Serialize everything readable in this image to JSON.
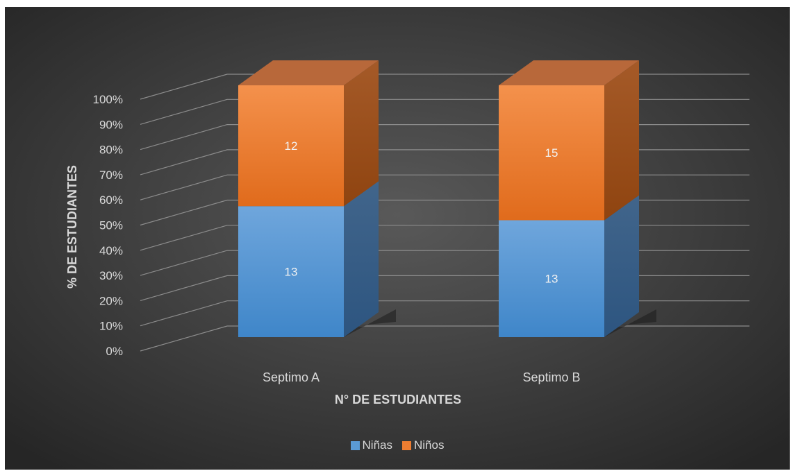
{
  "chart_data": {
    "type": "bar",
    "stacked": "percent",
    "three_d": true,
    "categories": [
      "Septimo A",
      "Septimo B"
    ],
    "series": [
      {
        "name": "Niñas",
        "values": [
          13,
          13
        ],
        "color": "#5b9bd5"
      },
      {
        "name": "Niños",
        "values": [
          12,
          15
        ],
        "color": "#ed7d31"
      }
    ],
    "title": "",
    "xlabel": "N° DE ESTUDIANTES",
    "ylabel": "% DE ESTUDIANTES",
    "yticks": [
      "0%",
      "10%",
      "20%",
      "30%",
      "40%",
      "50%",
      "60%",
      "70%",
      "80%",
      "90%",
      "100%"
    ],
    "ylim": [
      0,
      100
    ],
    "grid": true,
    "legend": "bottom",
    "background": "#404040"
  }
}
